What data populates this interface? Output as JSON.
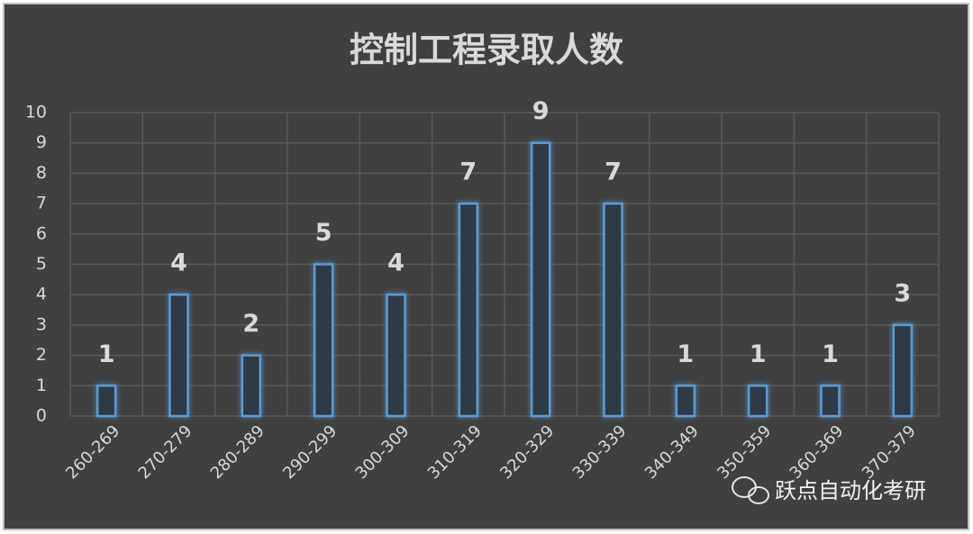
{
  "chart_data": {
    "type": "bar",
    "title": "控制工程录取人数",
    "categories": [
      "260-269",
      "270-279",
      "280-289",
      "290-299",
      "300-309",
      "310-319",
      "320-329",
      "330-339",
      "340-349",
      "350-359",
      "360-369",
      "370-379"
    ],
    "values": [
      1,
      4,
      2,
      5,
      4,
      7,
      9,
      7,
      1,
      1,
      1,
      3
    ],
    "color": "#5b9bd5",
    "ylim": [
      0,
      10
    ],
    "yticks": [
      0,
      1,
      2,
      3,
      4,
      5,
      6,
      7,
      8,
      9,
      10
    ],
    "grid": true,
    "watermark": "跃点自动化考研"
  }
}
